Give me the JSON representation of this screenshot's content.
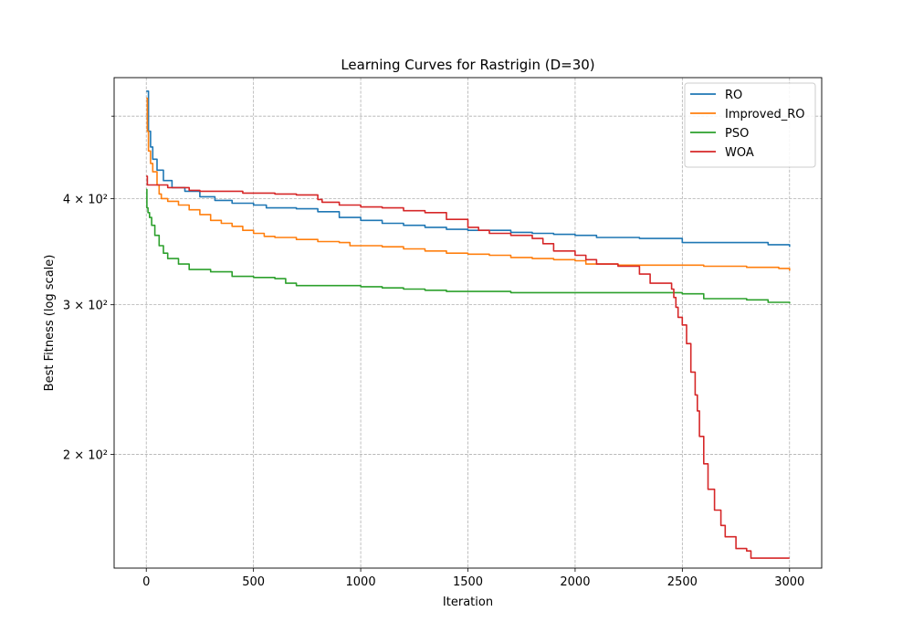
{
  "chart_data": {
    "type": "line",
    "title": "Learning Curves for Rastrigin (D=30)",
    "xlabel": "Iteration",
    "ylabel": "Best Fitness (log scale)",
    "x_scale": "linear",
    "y_scale": "log",
    "xlim": [
      -150,
      3150
    ],
    "ylim": [
      147,
      555
    ],
    "x_ticks": [
      0,
      500,
      1000,
      1500,
      2000,
      2500,
      3000
    ],
    "x_tick_labels": [
      "0",
      "500",
      "1000",
      "1500",
      "2000",
      "2500",
      "3000"
    ],
    "y_ticks": [
      200,
      300,
      400
    ],
    "y_tick_labels": [
      "2 × 10²",
      "3 × 10²",
      "4 × 10²"
    ],
    "y_minor_ticks": [
      500
    ],
    "grid": true,
    "legend_position": "top-right",
    "series": [
      {
        "name": "RO",
        "color": "#1f77b4",
        "x": [
          0,
          10,
          20,
          30,
          50,
          80,
          120,
          180,
          250,
          320,
          400,
          500,
          560,
          680,
          700,
          800,
          900,
          1000,
          1100,
          1200,
          1300,
          1400,
          1500,
          1600,
          1700,
          1800,
          1900,
          2000,
          2100,
          2200,
          2300,
          2400,
          2500,
          2600,
          2700,
          2800,
          2900,
          3000
        ],
        "y": [
          535,
          480,
          460,
          445,
          432,
          420,
          412,
          408,
          402,
          398,
          395,
          393,
          390,
          390,
          389,
          386,
          380,
          377,
          374,
          372,
          370,
          368,
          367,
          367,
          365,
          364,
          363,
          362,
          360,
          360,
          359,
          359,
          355,
          355,
          355,
          355,
          353,
          351
        ]
      },
      {
        "name": "Improved_RO",
        "color": "#ff7f0e",
        "x": [
          0,
          5,
          10,
          20,
          30,
          50,
          60,
          70,
          100,
          150,
          200,
          250,
          300,
          350,
          400,
          450,
          500,
          550,
          600,
          700,
          800,
          900,
          950,
          1000,
          1100,
          1200,
          1300,
          1400,
          1500,
          1600,
          1700,
          1800,
          1900,
          2000,
          2050,
          2200,
          2400,
          2600,
          2800,
          2950,
          3000
        ],
        "y": [
          525,
          480,
          455,
          440,
          430,
          415,
          405,
          400,
          397,
          393,
          388,
          383,
          377,
          374,
          371,
          367,
          364,
          361,
          360,
          358,
          356,
          355,
          352,
          352,
          351,
          349,
          347,
          345,
          344,
          343,
          341,
          340,
          339,
          338,
          335,
          334,
          334,
          333,
          332,
          331,
          329
        ]
      },
      {
        "name": "PSO",
        "color": "#2ca02c",
        "x": [
          0,
          3,
          8,
          15,
          25,
          40,
          60,
          80,
          100,
          150,
          200,
          300,
          400,
          500,
          600,
          650,
          700,
          800,
          1000,
          1100,
          1200,
          1300,
          1400,
          1500,
          1600,
          1700,
          2000,
          2200,
          2400,
          2500,
          2600,
          2800,
          2900,
          3000
        ],
        "y": [
          410,
          390,
          385,
          380,
          372,
          362,
          352,
          345,
          340,
          335,
          330,
          328,
          324,
          323,
          322,
          318,
          316,
          316,
          315,
          314,
          313,
          312,
          311,
          311,
          311,
          310,
          310,
          310,
          310,
          309,
          305,
          304,
          302,
          301
        ]
      },
      {
        "name": "WOA",
        "color": "#d62728",
        "x": [
          0,
          5,
          100,
          200,
          250,
          400,
          450,
          600,
          700,
          800,
          820,
          900,
          1000,
          1100,
          1200,
          1300,
          1400,
          1500,
          1550,
          1600,
          1700,
          1800,
          1850,
          1900,
          2000,
          2050,
          2100,
          2200,
          2300,
          2350,
          2450,
          2460,
          2470,
          2480,
          2500,
          2520,
          2540,
          2560,
          2570,
          2580,
          2600,
          2620,
          2650,
          2680,
          2700,
          2750,
          2800,
          2820,
          2900,
          3000
        ],
        "y": [
          425,
          415,
          412,
          409,
          408,
          408,
          406,
          405,
          404,
          399,
          396,
          393,
          391,
          390,
          387,
          385,
          378,
          370,
          367,
          364,
          362,
          359,
          354,
          347,
          343,
          339,
          335,
          333,
          326,
          318,
          313,
          306,
          298,
          290,
          284,
          270,
          250,
          235,
          225,
          210,
          195,
          182,
          172,
          165,
          160,
          155,
          154,
          151,
          151,
          151
        ]
      }
    ]
  }
}
